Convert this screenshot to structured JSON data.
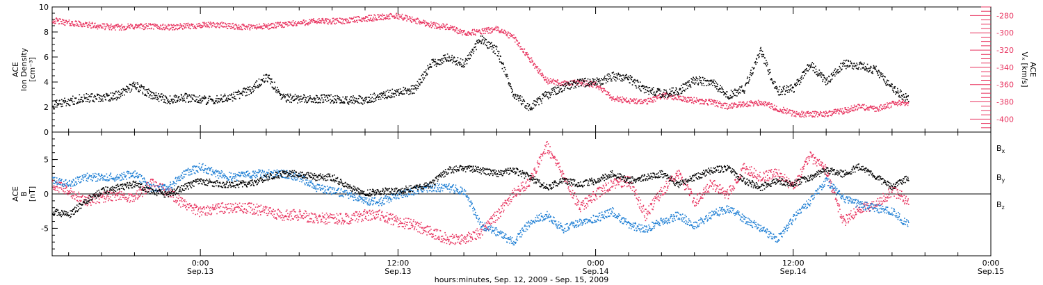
{
  "colors": {
    "black": "#000000",
    "pink": "#e8335f",
    "blue": "#1f7fd4"
  },
  "x_axis": {
    "xlabel": "hours:minutes, Sep. 12, 2009 - Sep. 15, 2009",
    "ticks": [
      {
        "hour": 24,
        "time": "0:00",
        "date": "Sep.13"
      },
      {
        "hour": 36,
        "time": "12:00",
        "date": "Sep.13"
      },
      {
        "hour": 48,
        "time": "0:00",
        "date": "Sep.14"
      },
      {
        "hour": 60,
        "time": "12:00",
        "date": "Sep.14"
      },
      {
        "hour": 72,
        "time": "0:00",
        "date": "Sep.15"
      }
    ]
  },
  "chart_data": [
    {
      "type": "scatter",
      "panel": "top",
      "xlim": [
        15,
        72
      ],
      "ylabel": "ACE\nIon Density\n[cm⁻³]",
      "ylim": [
        0,
        10
      ],
      "yticks": [
        "0",
        "2",
        "4",
        "6",
        "8",
        "10"
      ],
      "y2label": "ACE\nVₓ [km/s]",
      "y2lim": [
        -415,
        -270
      ],
      "y2ticks": [
        "-280",
        "-300",
        "-320",
        "-340",
        "-360",
        "-380",
        "-400"
      ],
      "series": [
        {
          "color": "black",
          "axis": "left",
          "x": [
            15,
            16,
            17,
            18,
            19,
            20,
            21,
            22,
            23,
            24,
            25,
            26,
            27,
            28,
            29,
            30,
            31,
            32,
            33,
            34,
            35,
            36,
            37,
            38,
            39,
            40,
            41,
            42,
            43,
            44,
            45,
            46,
            47,
            48,
            49,
            50,
            51,
            52,
            53,
            54,
            55,
            56,
            57,
            58,
            59,
            60,
            61,
            62,
            63,
            64,
            65,
            66,
            67
          ],
          "y": [
            2.2,
            2.5,
            2.8,
            2.7,
            3.0,
            3.8,
            3.0,
            2.6,
            2.8,
            2.6,
            2.6,
            2.9,
            3.4,
            4.5,
            2.8,
            2.7,
            2.7,
            2.7,
            2.6,
            2.6,
            3.0,
            3.2,
            3.5,
            5.5,
            6.0,
            5.5,
            7.5,
            6.5,
            3.0,
            2.0,
            3.0,
            3.6,
            4.0,
            4.0,
            4.5,
            4.3,
            3.4,
            3.1,
            3.3,
            4.2,
            4.0,
            3.0,
            3.5,
            6.5,
            3.3,
            3.5,
            5.5,
            4.0,
            5.5,
            5.3,
            5.0,
            3.5,
            2.6
          ]
        },
        {
          "color": "pink",
          "axis": "right",
          "x": [
            15,
            16,
            17,
            18,
            19,
            20,
            21,
            22,
            23,
            24,
            25,
            26,
            27,
            28,
            29,
            30,
            31,
            32,
            33,
            34,
            35,
            36,
            37,
            38,
            39,
            40,
            41,
            42,
            43,
            44,
            45,
            46,
            47,
            48,
            49,
            50,
            51,
            52,
            53,
            54,
            55,
            56,
            57,
            58,
            59,
            60,
            61,
            62,
            63,
            64,
            65,
            66,
            67
          ],
          "y": [
            -285,
            -288,
            -290,
            -292,
            -293,
            -292,
            -292,
            -293,
            -292,
            -291,
            -290,
            -292,
            -293,
            -292,
            -290,
            -288,
            -286,
            -286,
            -285,
            -283,
            -281,
            -280,
            -285,
            -290,
            -293,
            -300,
            -298,
            -295,
            -305,
            -330,
            -355,
            -358,
            -357,
            -360,
            -375,
            -378,
            -380,
            -372,
            -374,
            -378,
            -380,
            -385,
            -382,
            -380,
            -387,
            -393,
            -394,
            -393,
            -390,
            -385,
            -388,
            -382,
            -380
          ]
        }
      ]
    },
    {
      "type": "scatter",
      "panel": "bottom",
      "xlim": [
        15,
        72
      ],
      "ylabel": "ACE\nB\n[nT]",
      "ylim": [
        -9,
        9
      ],
      "yticks": [
        "-5",
        "0",
        "5"
      ],
      "legend": [
        "Bx",
        "By",
        "Bz"
      ],
      "series": [
        {
          "name": "Bx",
          "color": "black",
          "x": [
            15,
            16,
            17,
            18,
            19,
            20,
            21,
            22,
            23,
            24,
            25,
            26,
            27,
            28,
            29,
            30,
            31,
            32,
            33,
            34,
            35,
            36,
            37,
            38,
            39,
            40,
            41,
            42,
            43,
            44,
            45,
            46,
            47,
            48,
            49,
            50,
            51,
            52,
            53,
            54,
            55,
            56,
            57,
            58,
            59,
            60,
            61,
            62,
            63,
            64,
            65,
            66,
            67
          ],
          "y": [
            -2.5,
            -3.0,
            -1.0,
            0.5,
            1.0,
            1.5,
            0.5,
            0.0,
            1.0,
            2.0,
            1.5,
            1.5,
            1.5,
            2.5,
            3.0,
            3.0,
            2.5,
            2.5,
            1.0,
            0.2,
            0.5,
            0.5,
            1.0,
            1.5,
            3.5,
            3.8,
            3.5,
            3.0,
            3.5,
            2.5,
            1.0,
            2.0,
            1.5,
            2.0,
            3.0,
            2.0,
            2.5,
            3.0,
            1.5,
            2.5,
            3.5,
            3.8,
            2.0,
            1.0,
            2.0,
            1.5,
            2.5,
            3.5,
            3.0,
            4.0,
            2.5,
            1.0,
            2.5
          ]
        },
        {
          "name": "By",
          "color": "blue",
          "x": [
            15,
            16,
            17,
            18,
            19,
            20,
            21,
            22,
            23,
            24,
            25,
            26,
            27,
            28,
            29,
            30,
            31,
            32,
            33,
            34,
            35,
            36,
            37,
            38,
            39,
            40,
            41,
            42,
            43,
            44,
            45,
            46,
            47,
            48,
            49,
            50,
            51,
            52,
            53,
            54,
            55,
            56,
            57,
            58,
            59,
            60,
            61,
            62,
            63,
            64,
            65,
            66,
            67
          ],
          "y": [
            2.0,
            1.5,
            2.5,
            2.5,
            2.5,
            3.0,
            1.0,
            1.0,
            3.0,
            4.0,
            3.0,
            2.5,
            3.0,
            3.0,
            3.0,
            2.5,
            1.0,
            0.5,
            0.0,
            -1.0,
            -1.0,
            0.0,
            0.5,
            1.0,
            1.0,
            0.5,
            -4.5,
            -5.5,
            -7.0,
            -4.0,
            -3.0,
            -5.0,
            -4.0,
            -3.5,
            -2.5,
            -4.5,
            -5.0,
            -4.0,
            -3.0,
            -4.5,
            -3.0,
            -2.0,
            -3.5,
            -5.0,
            -6.5,
            -3.5,
            -1.0,
            2.0,
            -0.5,
            -1.5,
            -2.0,
            -2.5,
            -4.5
          ]
        },
        {
          "name": "Bz",
          "color": "pink",
          "x": [
            15,
            16,
            17,
            18,
            19,
            20,
            21,
            22,
            23,
            24,
            25,
            26,
            27,
            28,
            29,
            30,
            31,
            32,
            33,
            34,
            35,
            36,
            37,
            38,
            39,
            40,
            41,
            42,
            43,
            44,
            45,
            46,
            47,
            48,
            49,
            50,
            51,
            52,
            53,
            54,
            55,
            56,
            57,
            58,
            59,
            60,
            61,
            62,
            63,
            64,
            65,
            66,
            67
          ],
          "y": [
            1.5,
            0.5,
            -1.0,
            -0.5,
            0.0,
            -0.5,
            1.5,
            0.5,
            -1.5,
            -2.5,
            -2.0,
            -2.0,
            -2.0,
            -2.5,
            -3.0,
            -3.0,
            -3.5,
            -3.5,
            -3.5,
            -3.0,
            -3.0,
            -4.0,
            -4.5,
            -5.5,
            -6.5,
            -6.5,
            -5.5,
            -3.0,
            0.0,
            2.0,
            7.0,
            3.0,
            -2.0,
            0.0,
            1.5,
            2.0,
            -3.0,
            0.5,
            3.0,
            -1.0,
            1.5,
            0.0,
            4.0,
            2.5,
            3.0,
            1.0,
            5.5,
            3.5,
            -4.0,
            -2.0,
            -1.5,
            0.5,
            -1.0
          ]
        }
      ]
    }
  ]
}
